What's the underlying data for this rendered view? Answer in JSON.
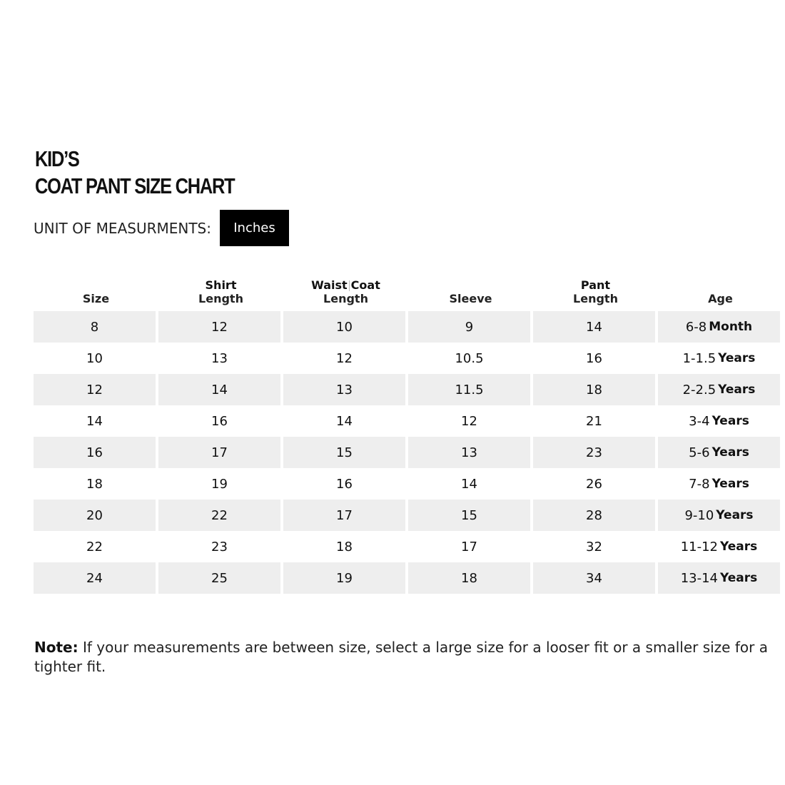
{
  "title": {
    "line1": "KID’S",
    "line2": "COAT PANT SIZE CHART"
  },
  "unit": {
    "label": "UNIT OF MEASURMENTS:",
    "value": "Inches"
  },
  "table": {
    "headers": [
      {
        "line1": "",
        "line2": "Size"
      },
      {
        "line1": "Shirt",
        "line2": "Length"
      },
      {
        "line1": "Waist|Coat",
        "line2": "Length"
      },
      {
        "line1": "",
        "line2": "Sleeve"
      },
      {
        "line1": "Pant",
        "line2": "Length"
      },
      {
        "line1": "",
        "line2": "Age"
      }
    ],
    "rows": [
      {
        "size": "8",
        "shirt": "12",
        "waistcoat": "10",
        "sleeve": "9",
        "pant": "14",
        "age_num": "6-8",
        "age_unit": "Month"
      },
      {
        "size": "10",
        "shirt": "13",
        "waistcoat": "12",
        "sleeve": "10.5",
        "pant": "16",
        "age_num": "1-1.5",
        "age_unit": "Years"
      },
      {
        "size": "12",
        "shirt": "14",
        "waistcoat": "13",
        "sleeve": "11.5",
        "pant": "18",
        "age_num": "2-2.5",
        "age_unit": "Years"
      },
      {
        "size": "14",
        "shirt": "16",
        "waistcoat": "14",
        "sleeve": "12",
        "pant": "21",
        "age_num": "3-4",
        "age_unit": "Years"
      },
      {
        "size": "16",
        "shirt": "17",
        "waistcoat": "15",
        "sleeve": "13",
        "pant": "23",
        "age_num": "5-6",
        "age_unit": "Years"
      },
      {
        "size": "18",
        "shirt": "19",
        "waistcoat": "16",
        "sleeve": "14",
        "pant": "26",
        "age_num": "7-8",
        "age_unit": "Years"
      },
      {
        "size": "20",
        "shirt": "22",
        "waistcoat": "17",
        "sleeve": "15",
        "pant": "28",
        "age_num": "9-10",
        "age_unit": "Years"
      },
      {
        "size": "22",
        "shirt": "23",
        "waistcoat": "18",
        "sleeve": "17",
        "pant": "32",
        "age_num": "11-12",
        "age_unit": "Years"
      },
      {
        "size": "24",
        "shirt": "25",
        "waistcoat": "19",
        "sleeve": "18",
        "pant": "34",
        "age_num": "13-14",
        "age_unit": "Years"
      }
    ]
  },
  "note": {
    "label": "Note:",
    "text": " If your measurements are between size, select a large size for a looser fit or a smaller size for a tighter fit."
  },
  "colors": {
    "row_shade": "#eeeeee",
    "badge_bg": "#000000"
  }
}
